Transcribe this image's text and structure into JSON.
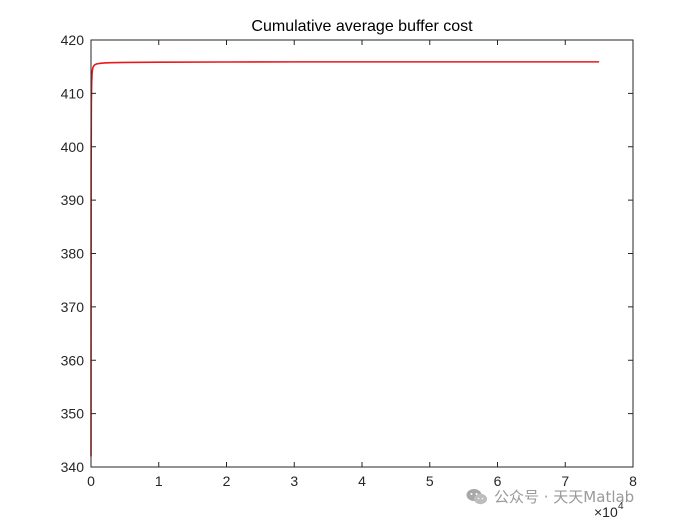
{
  "chart_data": {
    "type": "line",
    "title": "Cumulative average buffer cost",
    "xlabel": "",
    "ylabel": "",
    "xlim": [
      0,
      80000
    ],
    "ylim": [
      340,
      420
    ],
    "x_ticks": [
      0,
      10000,
      20000,
      30000,
      40000,
      50000,
      60000,
      70000,
      80000
    ],
    "x_tick_labels": [
      "0",
      "1",
      "2",
      "3",
      "4",
      "5",
      "6",
      "7",
      "8"
    ],
    "x_exponent_label": "×10",
    "x_exponent_power": "4",
    "y_ticks": [
      340,
      350,
      360,
      370,
      380,
      390,
      400,
      410,
      420
    ],
    "y_tick_labels": [
      "340",
      "350",
      "360",
      "370",
      "380",
      "390",
      "400",
      "410",
      "420"
    ],
    "grid": false,
    "box": true,
    "series": [
      {
        "color": "#e8191c",
        "x": [
          1,
          20,
          50,
          100,
          150,
          200,
          300,
          500,
          800,
          1200,
          2000,
          3000,
          5000,
          10000,
          20000,
          30000,
          40000,
          50000,
          60000,
          70000,
          75000
        ],
        "y": [
          342,
          395,
          408,
          412,
          413.5,
          414.3,
          414.9,
          415.3,
          415.5,
          415.6,
          415.7,
          415.75,
          415.8,
          415.85,
          415.88,
          415.9,
          415.9,
          415.9,
          415.9,
          415.9,
          415.9
        ]
      }
    ]
  },
  "watermark": {
    "text": "公众号 · 天天Matlab",
    "icon": "wechat-icon"
  }
}
